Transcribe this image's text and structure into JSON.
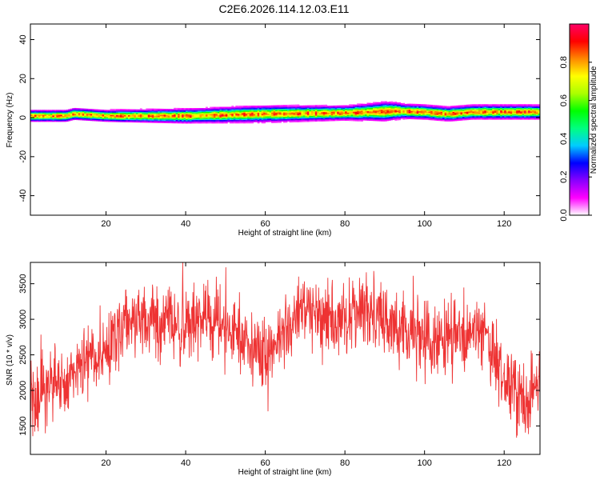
{
  "chart_data": [
    {
      "type": "heatmap",
      "title": "C2E6.2026.114.12.03.E11",
      "xlabel": "Height of straight line (km)",
      "ylabel": "Frequency (Hz)",
      "xlim": [
        1,
        129
      ],
      "ylim": [
        -50,
        48
      ],
      "x_ticks": [
        20,
        40,
        60,
        80,
        100,
        120
      ],
      "y_ticks": [
        40,
        20,
        0,
        -20,
        -40
      ],
      "colorbar": {
        "label": "Normalized spectral amplitude",
        "range": [
          0,
          1
        ],
        "ticks": [
          "0.0",
          "0.2",
          "0.4",
          "0.6",
          "0.8"
        ],
        "colors": [
          "#ffffff",
          "#ff00ff",
          "#8800ff",
          "#0000ff",
          "#00ccff",
          "#00ff80",
          "#00ff00",
          "#aaff00",
          "#ffff00",
          "#ff8800",
          "#ff0000",
          "#ff0066"
        ]
      },
      "band": {
        "center_freq_hz": [
          [
            1,
            1
          ],
          [
            10,
            1
          ],
          [
            12,
            2
          ],
          [
            20,
            1
          ],
          [
            40,
            1
          ],
          [
            60,
            2
          ],
          [
            80,
            2.5
          ],
          [
            93,
            3.5
          ],
          [
            100,
            3
          ],
          [
            106,
            2
          ],
          [
            112,
            3
          ],
          [
            129,
            3
          ]
        ],
        "half_width_hz": [
          [
            1,
            2.5
          ],
          [
            20,
            2.5
          ],
          [
            40,
            3
          ],
          [
            60,
            3.5
          ],
          [
            80,
            3
          ],
          [
            90,
            4
          ],
          [
            96,
            3
          ],
          [
            104,
            3
          ],
          [
            112,
            3
          ],
          [
            129,
            3
          ]
        ]
      }
    },
    {
      "type": "line",
      "xlabel": "Height of straight line (km)",
      "ylabel": "SNR (10 * v/v)",
      "xlim": [
        1,
        129
      ],
      "ylim": [
        1100,
        3800
      ],
      "x_ticks": [
        20,
        40,
        60,
        80,
        100,
        120
      ],
      "y_ticks": [
        1500,
        2000,
        2500,
        3000,
        3500
      ],
      "series": [
        {
          "color": "#ee3333",
          "trend": [
            [
              1,
              1800
            ],
            [
              5,
              2000
            ],
            [
              10,
              2100
            ],
            [
              15,
              2400
            ],
            [
              20,
              2600
            ],
            [
              25,
              2900
            ],
            [
              30,
              3000
            ],
            [
              35,
              2950
            ],
            [
              40,
              2900
            ],
            [
              45,
              3050
            ],
            [
              50,
              2850
            ],
            [
              55,
              2700
            ],
            [
              60,
              2500
            ],
            [
              65,
              2900
            ],
            [
              70,
              3150
            ],
            [
              75,
              2950
            ],
            [
              80,
              3050
            ],
            [
              85,
              3100
            ],
            [
              90,
              3000
            ],
            [
              95,
              2800
            ],
            [
              100,
              2700
            ],
            [
              105,
              2750
            ],
            [
              110,
              2750
            ],
            [
              115,
              2850
            ],
            [
              118,
              2350
            ],
            [
              122,
              2000
            ],
            [
              126,
              1900
            ],
            [
              129,
              1950
            ]
          ],
          "noise_amplitude": 250
        }
      ]
    }
  ]
}
